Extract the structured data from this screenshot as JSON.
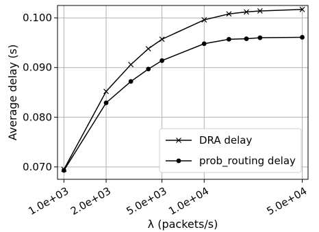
{
  "chart_data": {
    "type": "line",
    "xlabel": "λ (packets/s)",
    "ylabel": "Average delay (s)",
    "x_scale": "log",
    "xlim": [
      900,
      55000
    ],
    "ylim": [
      0.0675,
      0.1025
    ],
    "x_ticks": [
      1000,
      2000,
      5000,
      10000,
      50000
    ],
    "x_tick_labels": [
      "1.0e+03",
      "2.0e+03",
      "5.0e+03",
      "1.0e+04",
      "5.0e+04"
    ],
    "y_ticks": [
      0.07,
      0.08,
      0.09,
      0.1
    ],
    "y_tick_labels": [
      "0.070",
      "0.080",
      "0.090",
      "0.100"
    ],
    "grid": true,
    "legend_position": "bottom-right",
    "colors": {
      "line": "#000000",
      "grid": "#b0b0b0",
      "axes": "#000000"
    },
    "series": [
      {
        "name": "DRA delay",
        "marker": "x",
        "x": [
          1000,
          2000,
          3000,
          4000,
          5000,
          10000,
          15000,
          20000,
          25000,
          50000
        ],
        "y": [
          0.0695,
          0.0852,
          0.0906,
          0.0938,
          0.0957,
          0.0996,
          0.1008,
          0.1012,
          0.1014,
          0.1017
        ]
      },
      {
        "name": "prob_routing delay",
        "marker": "circle",
        "x": [
          1000,
          2000,
          3000,
          4000,
          5000,
          10000,
          15000,
          20000,
          25000,
          50000
        ],
        "y": [
          0.0693,
          0.0829,
          0.0872,
          0.0897,
          0.0914,
          0.0948,
          0.0957,
          0.0958,
          0.096,
          0.0961
        ]
      }
    ]
  }
}
